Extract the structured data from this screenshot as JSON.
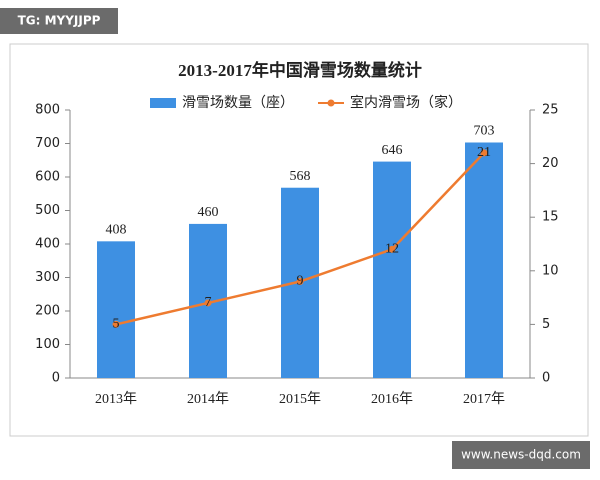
{
  "badges": {
    "top": "TG: MYYJJPP",
    "bottom": "www.news-dqd.com"
  },
  "chart_data": {
    "type": "combo",
    "title": "2013-2017年中国滑雪场数量统计",
    "categories": [
      "2013年",
      "2014年",
      "2015年",
      "2016年",
      "2017年"
    ],
    "series": [
      {
        "name": "滑雪场数量（座）",
        "type": "bar",
        "color": "#3e90e2",
        "values": [
          408,
          460,
          568,
          646,
          703
        ]
      },
      {
        "name": "室内滑雪场（家）",
        "type": "line",
        "axis": "y2",
        "color": "#ee7b30",
        "values": [
          5,
          7,
          9,
          12,
          21
        ]
      }
    ],
    "ylim": [
      0,
      800
    ],
    "yticks": [
      0,
      100,
      200,
      300,
      400,
      500,
      600,
      700,
      800
    ],
    "y2lim": [
      0,
      25
    ],
    "y2ticks": [
      0,
      5,
      10,
      15,
      20,
      25
    ],
    "grid": false,
    "legend": "top"
  }
}
